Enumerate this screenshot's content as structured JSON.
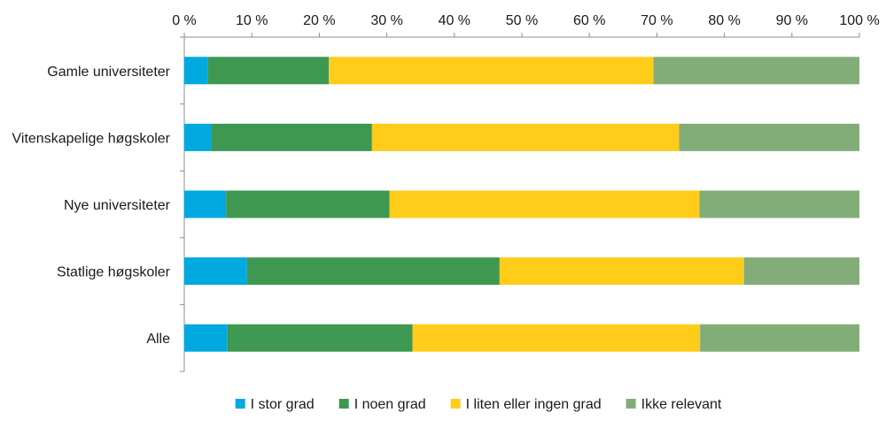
{
  "chart_data": {
    "type": "bar",
    "orientation": "horizontal",
    "stacked": "percent",
    "categories": [
      "Gamle universiteter",
      "Vitenskapelige høgskoler",
      "Nye universiteter",
      "Statlige høgskoler",
      "Alle"
    ],
    "series": [
      {
        "name": "I stor grad",
        "color": "#00a9e0",
        "values": [
          3.5,
          4.0,
          6.2,
          9.3,
          6.4
        ]
      },
      {
        "name": "I noen grad",
        "color": "#3f9852",
        "values": [
          17.9,
          23.8,
          24.2,
          37.4,
          27.4
        ]
      },
      {
        "name": "I liten eller ingen grad",
        "color": "#ffcc1a",
        "values": [
          48.1,
          45.5,
          45.9,
          36.2,
          42.6
        ]
      },
      {
        "name": "Ikke relevant",
        "color": "#83ad78",
        "values": [
          30.5,
          26.7,
          23.7,
          17.1,
          23.6
        ]
      }
    ],
    "xlim": [
      0,
      100
    ],
    "xticks": [
      "0 %",
      "10 %",
      "20 %",
      "30 %",
      "40 %",
      "50 %",
      "60 %",
      "70 %",
      "80 %",
      "90 %",
      "100 %"
    ],
    "axis_position": "top",
    "grid": false,
    "legend_position": "bottom"
  }
}
